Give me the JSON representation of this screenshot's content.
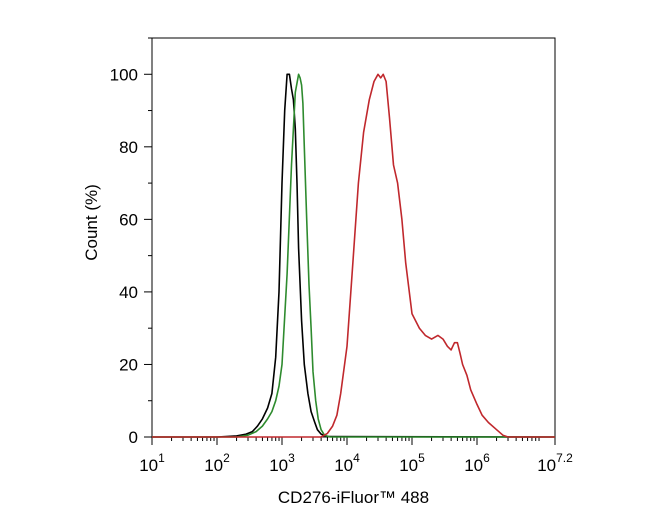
{
  "chart_data": {
    "type": "line",
    "title": "",
    "xlabel": "CD276-iFluor™ 488",
    "ylabel": "Count  (%)",
    "x_scale": "log10",
    "xlim": [
      10,
      15848932
    ],
    "ylim": [
      0,
      110
    ],
    "grid": false,
    "legend": "none",
    "x_ticks": [
      {
        "base": "10",
        "exp": "1",
        "value": 10
      },
      {
        "base": "10",
        "exp": "2",
        "value": 100
      },
      {
        "base": "10",
        "exp": "3",
        "value": 1000
      },
      {
        "base": "10",
        "exp": "4",
        "value": 10000
      },
      {
        "base": "10",
        "exp": "5",
        "value": 100000
      },
      {
        "base": "10",
        "exp": "6",
        "value": 1000000
      },
      {
        "base": "10",
        "exp": "7.2",
        "value": 15848932
      }
    ],
    "y_ticks": [
      {
        "label": "0",
        "value": 0
      },
      {
        "label": "20",
        "value": 20
      },
      {
        "label": "40",
        "value": 40
      },
      {
        "label": "60",
        "value": 60
      },
      {
        "label": "80",
        "value": 80
      },
      {
        "label": "100",
        "value": 100
      }
    ],
    "series": [
      {
        "color": "#000000",
        "x": [
          10,
          100,
          200,
          280,
          350,
          420,
          500,
          600,
          700,
          800,
          900,
          1000,
          1100,
          1200,
          1300,
          1400,
          1500,
          1600,
          1700,
          1800,
          2000,
          2200,
          2500,
          2800,
          3200,
          3500,
          4000,
          5000,
          15848932
        ],
        "values": [
          0,
          0,
          0.3,
          0.8,
          1.5,
          3,
          5,
          8,
          12,
          22,
          40,
          70,
          90,
          100,
          100,
          96,
          93,
          85,
          70,
          52,
          32,
          20,
          12,
          7,
          4,
          2,
          0.8,
          0.1,
          0
        ]
      },
      {
        "color": "#2e8b2e",
        "x": [
          10,
          200,
          300,
          400,
          500,
          600,
          700,
          800,
          900,
          1000,
          1200,
          1400,
          1600,
          1800,
          1900,
          2000,
          2100,
          2200,
          2400,
          2600,
          2800,
          3000,
          3300,
          3600,
          4000,
          4500,
          5500,
          15848932
        ],
        "values": [
          0,
          0,
          0.5,
          1.5,
          3,
          5,
          7,
          10,
          14,
          20,
          45,
          75,
          95,
          100,
          99,
          97,
          92,
          80,
          60,
          42,
          30,
          18,
          10,
          5,
          2,
          0.5,
          0,
          0
        ]
      },
      {
        "color": "#c0282d",
        "x": [
          10,
          4000,
          5000,
          6000,
          7000,
          8000,
          10000,
          12000,
          15000,
          18000,
          22000,
          26000,
          30000,
          33000,
          36000,
          40000,
          45000,
          52000,
          60000,
          70000,
          80000,
          100000,
          130000,
          160000,
          200000,
          250000,
          300000,
          350000,
          400000,
          450000,
          500000,
          550000,
          600000,
          700000,
          800000,
          1000000,
          1200000,
          1500000,
          2000000,
          2500000,
          3000000,
          15848932
        ],
        "values": [
          0,
          0,
          1,
          3,
          6,
          12,
          25,
          45,
          70,
          84,
          93,
          98,
          100,
          99,
          100,
          98,
          88,
          75,
          70,
          60,
          48,
          34,
          30,
          28,
          27,
          28,
          27,
          25,
          24,
          26,
          26,
          23,
          20,
          17,
          13,
          9,
          6,
          4,
          2,
          0.5,
          0,
          0
        ]
      }
    ]
  }
}
